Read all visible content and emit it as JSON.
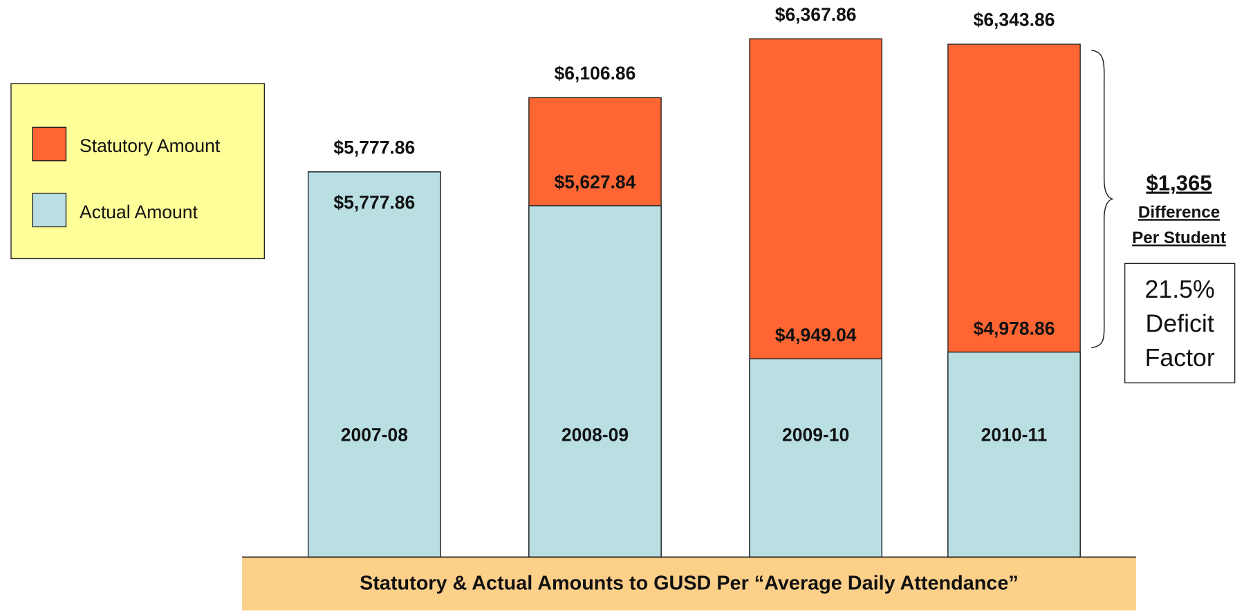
{
  "chart_data": {
    "type": "bar",
    "title": "Statutory & Actual Amounts to GUSD Per “Average Daily Attendance”",
    "categories": [
      "2007-08",
      "2008-09",
      "2009-10",
      "2010-11"
    ],
    "series": [
      {
        "name": "Statutory Amount",
        "color": "#ff6633",
        "values": [
          5777.86,
          6106.86,
          6367.86,
          6343.86
        ],
        "value_labels": [
          "$5,777.86",
          "$6,106.86",
          "$6,367.86",
          "$6,343.86"
        ]
      },
      {
        "name": "Actual Amount",
        "color": "#b9dfe3",
        "values": [
          5777.86,
          5627.84,
          4949.04,
          4978.86
        ],
        "value_labels": [
          "$5,777.86",
          "$5,627.84",
          "$4,949.04",
          "$4,978.86"
        ]
      }
    ],
    "ylim": [
      4070,
      6540
    ],
    "legend": "left",
    "annotations": {
      "difference": "$1,365",
      "difference_lines": [
        "Difference",
        "Per Student"
      ],
      "deficit_lines": [
        "21.5%",
        "Deficit",
        "Factor"
      ]
    }
  }
}
